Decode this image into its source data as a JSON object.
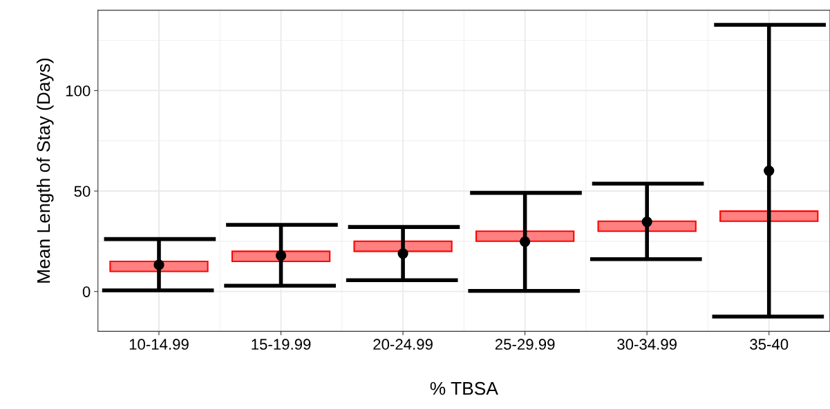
{
  "chart_data": {
    "type": "bar",
    "xlabel": "% TBSA",
    "ylabel": "Mean Length of Stay (Days)",
    "categories": [
      "10-14.99",
      "15-19.99",
      "20-24.99",
      "25-29.99",
      "30-34.99",
      "35-40"
    ],
    "series": [
      {
        "type": "bar",
        "color": "#ff8080",
        "base": [
          10,
          15,
          20,
          25,
          30,
          35
        ],
        "values": [
          5,
          5,
          5,
          5,
          5,
          5
        ]
      },
      {
        "type": "scatter",
        "color": "#000000",
        "values": [
          13.3,
          17.9,
          18.9,
          24.8,
          34.7,
          60.1
        ],
        "errors": [
          [
            0.6,
            26.1
          ],
          [
            2.9,
            33.2
          ],
          [
            5.6,
            32.1
          ],
          [
            0.3,
            49.1
          ],
          [
            16.1,
            53.7
          ],
          [
            -12.5,
            132.7
          ]
        ]
      }
    ],
    "ylim": [
      -19.8,
      140
    ],
    "yticks": [
      0,
      50,
      100
    ],
    "grid": true,
    "marker": "circle"
  }
}
